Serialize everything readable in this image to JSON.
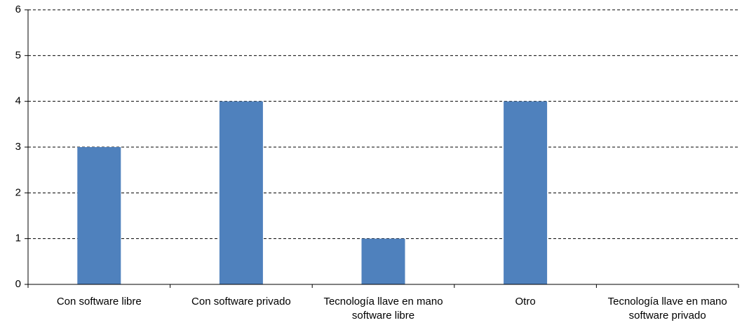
{
  "chart_data": {
    "type": "bar",
    "categories": [
      "Con software libre",
      "Con software privado",
      "Tecnología llave en mano software libre",
      "Otro",
      "Tecnología llave en mano software privado"
    ],
    "values": [
      3,
      4,
      1,
      4,
      0
    ],
    "color": "#4f81bd",
    "ylim": [
      0,
      6
    ],
    "yticks": [
      0,
      1,
      2,
      3,
      4,
      5,
      6
    ],
    "grid": true
  }
}
